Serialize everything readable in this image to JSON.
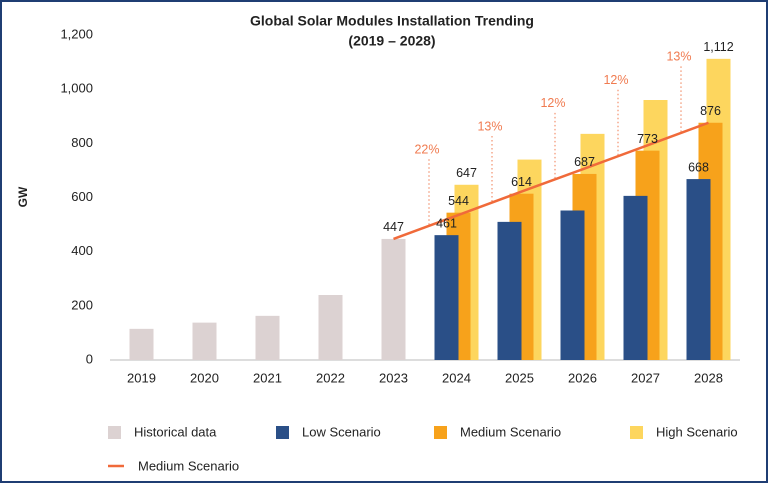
{
  "chart_data": {
    "type": "bar",
    "title": "Global Solar Modules Installation Trending",
    "subtitle": "(2019 – 2028)",
    "y_label": "GW",
    "categories": [
      "2019",
      "2020",
      "2021",
      "2022",
      "2023",
      "2024",
      "2025",
      "2026",
      "2027",
      "2028"
    ],
    "ylim": [
      0,
      1200
    ],
    "yticks": [
      0,
      200,
      400,
      600,
      800,
      {
        "value": 1000,
        "label": "1,000"
      },
      {
        "value": 1200,
        "label": "1,200"
      }
    ],
    "grid": false,
    "series": [
      {
        "name": "Historical data",
        "color": "#dcd2d2",
        "offset": 0,
        "values": [
          115,
          138,
          163,
          240,
          447,
          null,
          null,
          null,
          null,
          null
        ],
        "value_labels": [
          null,
          null,
          null,
          null,
          "447",
          null,
          null,
          null,
          null,
          null
        ]
      },
      {
        "name": "High Scenario",
        "color": "#fdd65e",
        "offset": 10,
        "values": [
          null,
          null,
          null,
          null,
          null,
          647,
          740,
          835,
          960,
          1112
        ],
        "value_labels": [
          null,
          null,
          null,
          null,
          null,
          "647",
          null,
          null,
          null,
          "1,112"
        ]
      },
      {
        "name": "Medium Scenario",
        "color": "#f7a21b",
        "offset": 2,
        "values": [
          null,
          null,
          null,
          null,
          null,
          544,
          614,
          687,
          773,
          876
        ],
        "value_labels": [
          null,
          null,
          null,
          null,
          null,
          "544",
          "614",
          "687",
          "773",
          "876"
        ]
      },
      {
        "name": "Low Scenario",
        "color": "#2a4f87",
        "offset": -10,
        "values": [
          null,
          null,
          null,
          null,
          null,
          461,
          510,
          552,
          606,
          668
        ],
        "value_labels": [
          null,
          null,
          null,
          null,
          null,
          "461",
          null,
          null,
          null,
          "668"
        ]
      },
      {
        "name": "Medium Scenario",
        "color": "#f06a3a",
        "type": "line",
        "values": [
          null,
          null,
          null,
          null,
          447,
          533,
          619,
          704,
          790,
          876
        ]
      }
    ],
    "legend_order": [
      0,
      3,
      2,
      1,
      4
    ],
    "annotations": [
      {
        "x": "2024",
        "text": "22%"
      },
      {
        "x": "2025",
        "text": "13%"
      },
      {
        "x": "2026",
        "text": "12%"
      },
      {
        "x": "2027",
        "text": "12%"
      },
      {
        "x": "2028",
        "text": "13%"
      }
    ],
    "annotation_color": "#f07b50"
  }
}
